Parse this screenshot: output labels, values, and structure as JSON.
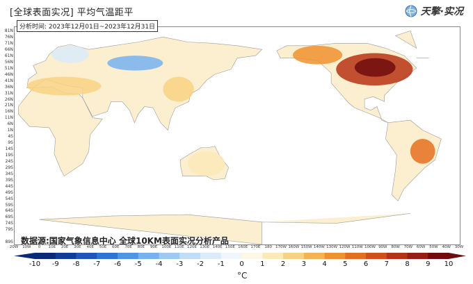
{
  "header": {
    "title": "[全球表面实况] 平均气温距平",
    "period": "分析时间: 2023年12月01日~2023年12月31日",
    "logo_text": "天擎·实况"
  },
  "source_note": "数据源:国家气象信息中心  全球10KM表面实况分析产品",
  "map": {
    "projection": "equirectangular",
    "central_longitude": 160,
    "lat_labels": [
      "81N",
      "76N",
      "71N",
      "66N",
      "61N",
      "56N",
      "51N",
      "46N",
      "41N",
      "36N",
      "31N",
      "26N",
      "21N",
      "16N",
      "11N",
      "6N",
      "1N",
      "4S",
      "9S",
      "14S",
      "19S",
      "24S",
      "29S",
      "34S",
      "39S",
      "44S",
      "49S",
      "54S",
      "59S",
      "64S",
      "69S",
      "74S",
      "79S",
      "89S"
    ],
    "lon_labels": [
      "20W",
      "10W",
      "0",
      "10E",
      "20E",
      "30E",
      "40E",
      "50E",
      "60E",
      "70E",
      "80E",
      "90E",
      "100E",
      "110E",
      "120E",
      "130E",
      "140E",
      "150E",
      "160E",
      "170E",
      "180",
      "170W",
      "160W",
      "150W",
      "140W",
      "130W",
      "120W",
      "110W",
      "100W",
      "90W",
      "80W",
      "70W",
      "60W",
      "50W",
      "40W",
      "30W"
    ],
    "anomaly_regions": [
      {
        "name": "north-america",
        "lon": [
          -120,
          -58
        ],
        "lat": [
          38,
          64
        ],
        "anomaly": 7
      },
      {
        "name": "north-america-core",
        "lon": [
          -105,
          -72
        ],
        "lat": [
          45,
          60
        ],
        "anomaly": 9
      },
      {
        "name": "alaska-canada-west",
        "lon": [
          -155,
          -115
        ],
        "lat": [
          55,
          70
        ],
        "anomaly": 4
      },
      {
        "name": "russia-central",
        "lon": [
          55,
          100
        ],
        "lat": [
          50,
          62
        ],
        "anomaly": -5
      },
      {
        "name": "northern-europe",
        "lon": [
          10,
          40
        ],
        "lat": [
          56,
          70
        ],
        "anomaly": -2
      },
      {
        "name": "mediterranean",
        "lon": [
          -10,
          50
        ],
        "lat": [
          30,
          45
        ],
        "anomaly": 2
      },
      {
        "name": "china-east",
        "lon": [
          100,
          125
        ],
        "lat": [
          25,
          45
        ],
        "anomaly": 2
      },
      {
        "name": "brazil",
        "lon": [
          -60,
          -40
        ],
        "lat": [
          -25,
          -5
        ],
        "anomaly": 5
      },
      {
        "name": "australia",
        "lon": [
          120,
          150
        ],
        "lat": [
          -35,
          -15
        ],
        "anomaly": 1
      },
      {
        "name": "antarctica",
        "lon": [
          -180,
          180
        ],
        "lat": [
          -90,
          -70
        ],
        "anomaly": 0
      }
    ]
  },
  "colorbar": {
    "ticks": [
      "-10",
      "-9",
      "-8",
      "-7",
      "-6",
      "-5",
      "-4",
      "-3",
      "-2",
      "-1",
      "0",
      "1",
      "2",
      "3",
      "4",
      "5",
      "6",
      "7",
      "8",
      "9",
      "10"
    ],
    "colors": [
      "#0a2a78",
      "#123c9a",
      "#1f56be",
      "#2e73d6",
      "#4f95e5",
      "#77b2ee",
      "#9ccaf3",
      "#c0dcf7",
      "#dbebfa",
      "#f0f6fc",
      "#fdf7e6",
      "#fbe9b8",
      "#f8d283",
      "#f4b453",
      "#ee922f",
      "#e4701f",
      "#d24f17",
      "#b63214",
      "#961c14",
      "#6e0c0e"
    ],
    "unit": "°C"
  }
}
